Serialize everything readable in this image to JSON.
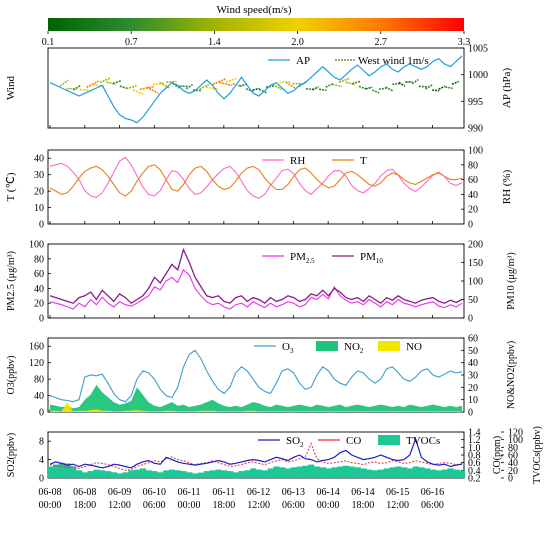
{
  "colorbar": {
    "title": "Wind speed(m/s)",
    "ticks": [
      "0.1",
      "0.7",
      "1.4",
      "2.0",
      "2.7",
      "3.3"
    ],
    "colors": [
      "#006400",
      "#2e8b2e",
      "#a0b400",
      "#f0d000",
      "#ff7a00",
      "#ff0000"
    ]
  },
  "x_axis": {
    "tick_labels": [
      [
        "06-08",
        "00:00"
      ],
      [
        "06-08",
        "18:00"
      ],
      [
        "06-09",
        "12:00"
      ],
      [
        "06-10",
        "06:00"
      ],
      [
        "06-11",
        "00:00"
      ],
      [
        "06-11",
        "18:00"
      ],
      [
        "06-12",
        "12:00"
      ],
      [
        "06-13",
        "06:00"
      ],
      [
        "06-14",
        "00:00"
      ],
      [
        "06-14",
        "18:00"
      ],
      [
        "06-15",
        "12:00"
      ],
      [
        "06-16",
        "06:00"
      ]
    ]
  },
  "chart_data": [
    {
      "type": "line",
      "panel": "Wind",
      "ylabel_left": "Wind",
      "ylabel_right": "AP (hPa)",
      "yticks_right": [
        "990",
        "995",
        "1000",
        "1005"
      ],
      "ylim_right": [
        990,
        1005
      ],
      "legend": {
        "ap": "AP",
        "wind": "West wind 1m/s"
      },
      "series": [
        {
          "key": "AP",
          "color": "#1f9fe0",
          "values": [
            998.5,
            998.0,
            997.5,
            997.0,
            996.5,
            996.0,
            996.5,
            997.0,
            997.5,
            998.0,
            996.0,
            994.0,
            992.5,
            991.8,
            991.5,
            991.0,
            992.0,
            993.5,
            995.0,
            996.5,
            997.5,
            998.5,
            998.0,
            997.0,
            996.5,
            997.0,
            998.0,
            999.0,
            998.0,
            996.5,
            995.5,
            996.5,
            998.0,
            999.5,
            998.0,
            996.5,
            996.0,
            997.0,
            998.0,
            998.5,
            997.5,
            996.5,
            997.0,
            998.0,
            998.5,
            999.5,
            1000.5,
            1001.5,
            1000.5,
            999.5,
            999.0,
            1000.0,
            1001.0,
            1001.8,
            1000.8,
            999.8,
            1000.5,
            1001.5,
            1002.0,
            1001.0,
            1000.5,
            1001.5,
            1002.0,
            1001.5,
            1001.0,
            1001.5,
            1002.5,
            1003.0,
            1002.0,
            1001.5,
            1002.5,
            1003.5
          ]
        }
      ]
    },
    {
      "type": "line",
      "panel": "T/RH",
      "ylabel_left": "T (℃)",
      "ylabel_right": "RH (%)",
      "yticks_left": [
        "0",
        "10",
        "20",
        "30",
        "40"
      ],
      "yticks_right": [
        "0",
        "20",
        "40",
        "60",
        "80",
        "100"
      ],
      "ylim_left": [
        0,
        45
      ],
      "ylim_right": [
        0,
        100
      ],
      "series": [
        {
          "name": "RH",
          "axis": "right",
          "color": "#ff69c8",
          "values": [
            78,
            80,
            82,
            78,
            70,
            60,
            45,
            38,
            36,
            42,
            55,
            70,
            85,
            90,
            80,
            65,
            50,
            40,
            38,
            45,
            60,
            72,
            70,
            60,
            48,
            40,
            42,
            50,
            60,
            68,
            75,
            78,
            70,
            58,
            45,
            38,
            35,
            40,
            52,
            62,
            72,
            74,
            68,
            55,
            45,
            40,
            48,
            55,
            65,
            72,
            72,
            65,
            52,
            45,
            42,
            48,
            55,
            65,
            72,
            74,
            66,
            55,
            48,
            44,
            50,
            58,
            66,
            70,
            64,
            55,
            52,
            56
          ]
        },
        {
          "name": "T",
          "axis": "left",
          "color": "#e87f1a",
          "values": [
            22,
            20,
            18,
            19,
            23,
            28,
            32,
            34,
            35,
            33,
            29,
            24,
            19,
            17,
            20,
            26,
            31,
            35,
            36,
            33,
            27,
            21,
            20,
            24,
            30,
            34,
            35,
            32,
            27,
            23,
            21,
            22,
            26,
            31,
            34,
            35,
            33,
            28,
            24,
            21,
            21,
            24,
            29,
            33,
            34,
            31,
            27,
            24,
            22,
            23,
            27,
            31,
            32,
            30,
            27,
            24,
            23,
            25,
            29,
            31,
            30,
            27,
            25,
            24,
            26,
            28,
            30,
            31,
            29,
            27,
            27,
            28
          ]
        }
      ]
    },
    {
      "type": "line",
      "panel": "PM",
      "ylabel_left": "PM2.5 (μg/m³)",
      "ylabel_right": "PM10 (μg/m³)",
      "yticks_left": [
        "0",
        "20",
        "40",
        "60",
        "80",
        "100"
      ],
      "yticks_right": [
        "0",
        "50",
        "100",
        "150",
        "200"
      ],
      "ylim_left": [
        0,
        100
      ],
      "ylim_right": [
        0,
        200
      ],
      "series": [
        {
          "name": "PM2.5",
          "axis": "left",
          "color": "#e833e8",
          "values": [
            22,
            20,
            18,
            15,
            12,
            20,
            15,
            25,
            18,
            28,
            20,
            15,
            22,
            18,
            16,
            20,
            25,
            30,
            42,
            38,
            50,
            55,
            48,
            65,
            58,
            40,
            30,
            22,
            18,
            20,
            15,
            12,
            18,
            20,
            15,
            22,
            18,
            14,
            20,
            15,
            18,
            22,
            20,
            15,
            18,
            28,
            25,
            32,
            26,
            42,
            30,
            24,
            20,
            22,
            18,
            25,
            20,
            15,
            22,
            18,
            25,
            20,
            18,
            15,
            18,
            20,
            22,
            16,
            14,
            18,
            15,
            20
          ]
        },
        {
          "name": "PM10",
          "axis": "right",
          "color": "#8b1a8b",
          "values": [
            60,
            55,
            50,
            45,
            40,
            55,
            60,
            70,
            50,
            75,
            60,
            45,
            65,
            55,
            40,
            50,
            60,
            80,
            110,
            95,
            120,
            145,
            130,
            185,
            150,
            110,
            85,
            60,
            55,
            60,
            45,
            40,
            55,
            60,
            45,
            55,
            50,
            40,
            55,
            45,
            50,
            60,
            55,
            45,
            50,
            65,
            60,
            75,
            60,
            80,
            70,
            55,
            50,
            55,
            45,
            60,
            50,
            40,
            55,
            48,
            60,
            50,
            45,
            40,
            48,
            52,
            55,
            45,
            40,
            48,
            42,
            50
          ]
        }
      ]
    },
    {
      "type": "area",
      "panel": "O3/NOx",
      "ylabel_left": "O3(ppbv)",
      "ylabel_right": "NO&NO2(ppbv)",
      "yticks_left": [
        "0",
        "40",
        "80",
        "120",
        "160"
      ],
      "yticks_right": [
        "0",
        "10",
        "20",
        "30",
        "40",
        "50",
        "60"
      ],
      "ylim_left": [
        0,
        180
      ],
      "ylim_right": [
        0,
        60
      ],
      "series": [
        {
          "name": "O3",
          "axis": "left",
          "type": "line",
          "color": "#3a9fd0",
          "values": [
            40,
            35,
            30,
            28,
            25,
            30,
            85,
            90,
            88,
            92,
            70,
            45,
            30,
            25,
            40,
            80,
            100,
            95,
            80,
            55,
            40,
            35,
            60,
            110,
            140,
            150,
            130,
            100,
            75,
            55,
            45,
            60,
            95,
            110,
            100,
            80,
            60,
            50,
            45,
            70,
            100,
            105,
            95,
            70,
            55,
            60,
            90,
            110,
            100,
            80,
            70,
            65,
            85,
            100,
            95,
            80,
            70,
            80,
            105,
            110,
            95,
            80,
            75,
            85,
            100,
            105,
            90,
            85,
            92,
            100,
            95,
            98
          ]
        },
        {
          "name": "NO2",
          "axis": "right",
          "type": "area",
          "color": "#1fc47a",
          "values": [
            6,
            5,
            4,
            5,
            3,
            4,
            10,
            14,
            22,
            16,
            12,
            8,
            6,
            7,
            9,
            20,
            14,
            8,
            5,
            4,
            6,
            8,
            5,
            6,
            4,
            5,
            6,
            8,
            10,
            7,
            5,
            4,
            5,
            4,
            6,
            8,
            7,
            5,
            4,
            6,
            5,
            4,
            5,
            6,
            5,
            4,
            6,
            5,
            4,
            5,
            6,
            4,
            5,
            6,
            5,
            4,
            5,
            6,
            5,
            4,
            5,
            4,
            6,
            5,
            4,
            5,
            6,
            5,
            4,
            5,
            4,
            5
          ]
        },
        {
          "name": "NO",
          "axis": "right",
          "type": "area",
          "color": "#f2e600",
          "values": [
            1,
            1,
            0.5,
            8,
            0.5,
            1,
            1,
            1.5,
            2,
            1,
            1,
            0.5,
            0.5,
            1,
            1,
            1.5,
            1,
            0.5,
            0.5,
            0.5,
            1,
            1,
            0.5,
            0.5,
            0.5,
            0.5,
            1,
            1,
            1,
            0.5,
            0.5,
            0.5,
            0.5,
            0.5,
            1,
            1,
            0.5,
            0.5,
            0.5,
            0.5,
            0.5,
            0.5,
            0.5,
            0.5,
            0.5,
            0.5,
            0.5,
            0.5,
            0.5,
            0.5,
            0.5,
            0.5,
            0.5,
            0.5,
            0.5,
            0.5,
            0.5,
            0.5,
            0.5,
            0.5,
            0.5,
            0.5,
            0.5,
            0.5,
            0.5,
            0.5,
            0.5,
            0.5,
            0.5,
            0.5,
            0.5,
            0.5
          ]
        }
      ]
    },
    {
      "type": "area",
      "panel": "SO2/CO/TVOCs",
      "ylabel_left": "SO2(ppbv)",
      "ylabel_right_1": "CO(ppm)",
      "ylabel_right_2": "TVOCs(ppbv)",
      "yticks_left": [
        "0",
        "4",
        "8"
      ],
      "yticks_right_1": [
        "0.2",
        "0.4",
        "0.6",
        "0.8",
        "1.0",
        "1.2",
        "1.4"
      ],
      "yticks_right_2": [
        "0",
        "20",
        "40",
        "60",
        "80",
        "100",
        "120"
      ],
      "ylim_left": [
        0,
        10
      ],
      "ylim_right_1": [
        0.2,
        1.4
      ],
      "ylim_right_2": [
        0,
        120
      ],
      "series": [
        {
          "name": "SO2",
          "axis": "left",
          "type": "line",
          "color": "#1c1cc8",
          "values": [
            3,
            3.5,
            3.2,
            2.8,
            3,
            2.5,
            3,
            2.8,
            2.5,
            2.2,
            2.5,
            3,
            2.8,
            2.5,
            2.2,
            3,
            3.5,
            3.8,
            3.2,
            3,
            4.5,
            4,
            3.5,
            3.2,
            3,
            2.8,
            3,
            3.2,
            3.5,
            3.8,
            3.5,
            3,
            3.2,
            3.5,
            3.8,
            4,
            3.8,
            3.5,
            4,
            4.5,
            4.2,
            3.8,
            4.5,
            5,
            4.2,
            4,
            3.5,
            3.8,
            4,
            4.5,
            5.5,
            6,
            5,
            4.5,
            4,
            4.2,
            4.5,
            5,
            4.5,
            4,
            3.8,
            4,
            5,
            8.5,
            4.5,
            3.5,
            3,
            2.8,
            3,
            2.5,
            2.8,
            3
          ]
        },
        {
          "name": "CO",
          "axis": "right_1",
          "type": "line",
          "dashed_part": true,
          "color": "#e83030",
          "values": [
            0.55,
            0.52,
            0.5,
            0.48,
            0.5,
            0.45,
            0.5,
            0.55,
            0.6,
            0.58,
            0.55,
            0.5,
            0.45,
            0.4,
            0.42,
            0.5,
            0.55,
            0.6,
            0.65,
            0.62,
            0.7,
            0.75,
            0.68,
            0.65,
            0.6,
            0.55,
            0.58,
            0.6,
            0.65,
            0.6,
            0.55,
            0.5,
            0.52,
            0.55,
            0.6,
            0.62,
            0.58,
            0.55,
            0.6,
            0.65,
            0.68,
            0.62,
            0.65,
            0.7,
            0.75,
            1.1,
            0.7,
            0.62,
            0.58,
            0.6,
            0.62,
            0.65,
            0.6,
            0.58,
            0.55,
            0.6,
            0.62,
            0.58,
            0.6,
            0.65,
            0.62,
            0.58,
            0.6,
            0.65,
            0.62,
            0.58,
            0.55,
            0.58,
            0.6,
            0.58,
            0.55,
            0.58
          ]
        },
        {
          "name": "TVOCs",
          "axis": "right_2",
          "type": "bar",
          "color": "#1ec896",
          "values": [
            30,
            35,
            40,
            38,
            30,
            20,
            15,
            18,
            22,
            20,
            18,
            15,
            12,
            15,
            20,
            22,
            25,
            20,
            18,
            15,
            20,
            22,
            20,
            18,
            15,
            12,
            14,
            18,
            20,
            22,
            20,
            18,
            15,
            18,
            20,
            25,
            22,
            20,
            25,
            30,
            28,
            25,
            28,
            30,
            32,
            35,
            30,
            28,
            25,
            28,
            30,
            32,
            30,
            28,
            25,
            22,
            20,
            22,
            25,
            28,
            30,
            28,
            25,
            30,
            28,
            25,
            22,
            20,
            22,
            25,
            22,
            20
          ]
        }
      ]
    }
  ],
  "wind_barbs": {
    "note_key": "West wind 1m/s",
    "speeds": [
      1.4,
      1.2,
      1.0,
      2.2,
      2.5,
      2.0,
      1.6,
      1.2,
      1.0,
      0.8,
      1.5,
      2.0,
      2.6,
      2.4,
      2.0,
      1.6,
      1.4,
      1.0,
      0.6,
      0.5,
      1.0,
      1.5,
      2.2,
      2.6,
      2.4,
      1.8,
      1.2,
      0.8,
      0.6,
      0.4,
      0.6,
      1.0,
      1.5,
      2.0,
      1.6,
      1.2,
      0.8,
      0.5,
      0.3,
      0.5,
      0.8,
      1.2,
      1.6,
      1.2,
      0.8,
      0.5,
      0.3,
      0.5,
      0.8,
      1.0,
      0.6,
      0.4,
      0.3,
      0.5,
      0.8,
      0.6,
      0.4,
      0.3,
      0.5,
      0.4
    ]
  }
}
